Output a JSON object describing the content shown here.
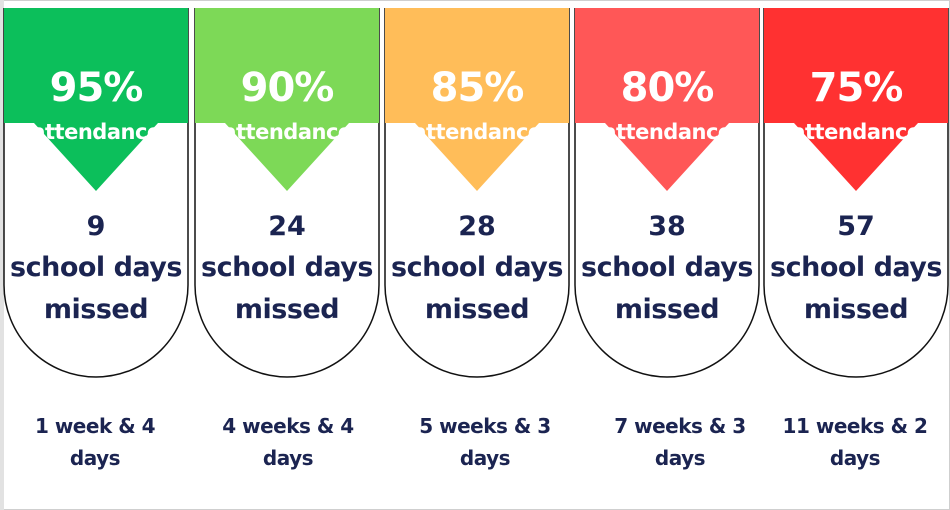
{
  "columns": [
    {
      "percent": "95%",
      "attendance_label": "attendance",
      "days_number": "9",
      "days_line1": "school days",
      "days_line2": "missed",
      "weeks_line1": "1 week & 4",
      "weeks_line2": "days",
      "color": "#0cbf5b"
    },
    {
      "percent": "90%",
      "attendance_label": "attendance",
      "days_number": "24",
      "days_line1": "school days",
      "days_line2": "missed",
      "weeks_line1": "4 weeks & 4",
      "weeks_line2": "days",
      "color": "#7dd957"
    },
    {
      "percent": "85%",
      "attendance_label": "attendance",
      "days_number": "28",
      "days_line1": "school days",
      "days_line2": "missed",
      "weeks_line1": "5 weeks & 3",
      "weeks_line2": "days",
      "color": "#ffbd59"
    },
    {
      "percent": "80%",
      "attendance_label": "attendance",
      "days_number": "38",
      "days_line1": "school days",
      "days_line2": "missed",
      "weeks_line1": "7 weeks & 3",
      "weeks_line2": "days",
      "color": "#ff5757"
    },
    {
      "percent": "75%",
      "attendance_label": "attendance",
      "days_number": "57",
      "days_line1": "school days",
      "days_line2": "missed",
      "weeks_line1": "11 weeks & 2",
      "weeks_line2": "days",
      "color": "#ff3131"
    }
  ],
  "text_color": "#1b2451"
}
